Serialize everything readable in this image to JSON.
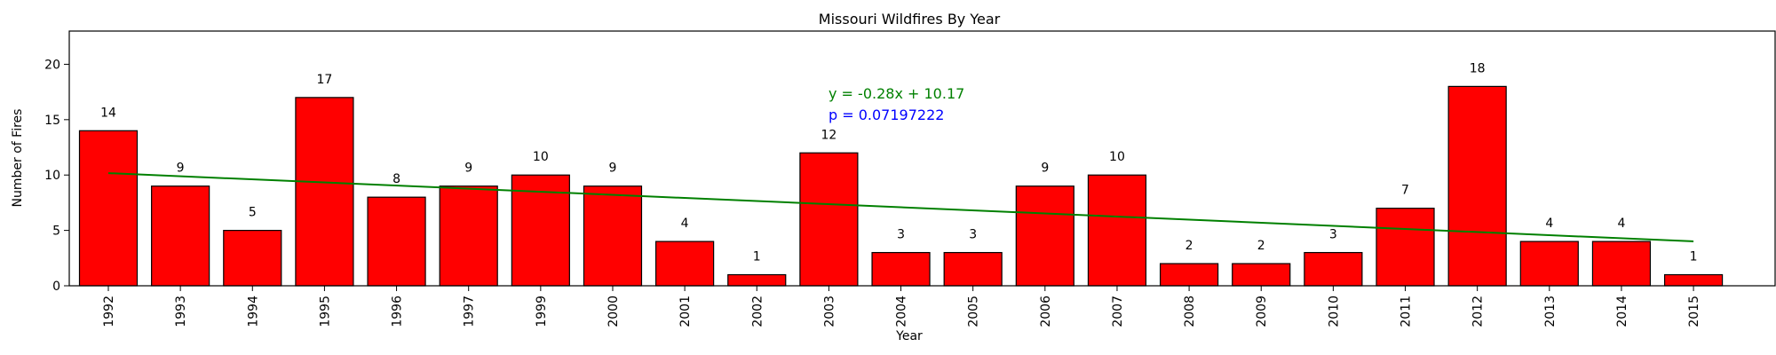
{
  "chart_data": {
    "type": "bar",
    "title": "Missouri Wildfires By Year",
    "xlabel": "Year",
    "ylabel": "Number of Fires",
    "categories": [
      "1992",
      "1993",
      "1994",
      "1995",
      "1996",
      "1997",
      "1999",
      "2000",
      "2001",
      "2002",
      "2003",
      "2004",
      "2005",
      "2006",
      "2007",
      "2008",
      "2009",
      "2010",
      "2011",
      "2012",
      "2013",
      "2014",
      "2015"
    ],
    "values": [
      14,
      9,
      5,
      17,
      8,
      9,
      10,
      9,
      4,
      1,
      12,
      3,
      3,
      9,
      10,
      2,
      2,
      3,
      7,
      18,
      4,
      4,
      1
    ],
    "ylim": [
      0,
      23
    ],
    "yticks": [
      0,
      5,
      10,
      15,
      20
    ],
    "bar_color": "#ff0000",
    "bar_edge_color": "#000000",
    "trendline": {
      "equation_label": "y = -0.28x + 10.17",
      "p_label": "p = 0.07197222",
      "slope": -0.28,
      "intercept": 10.17,
      "color": "#008000",
      "p_color": "#0000ff"
    },
    "grid": false,
    "legend": "none"
  }
}
